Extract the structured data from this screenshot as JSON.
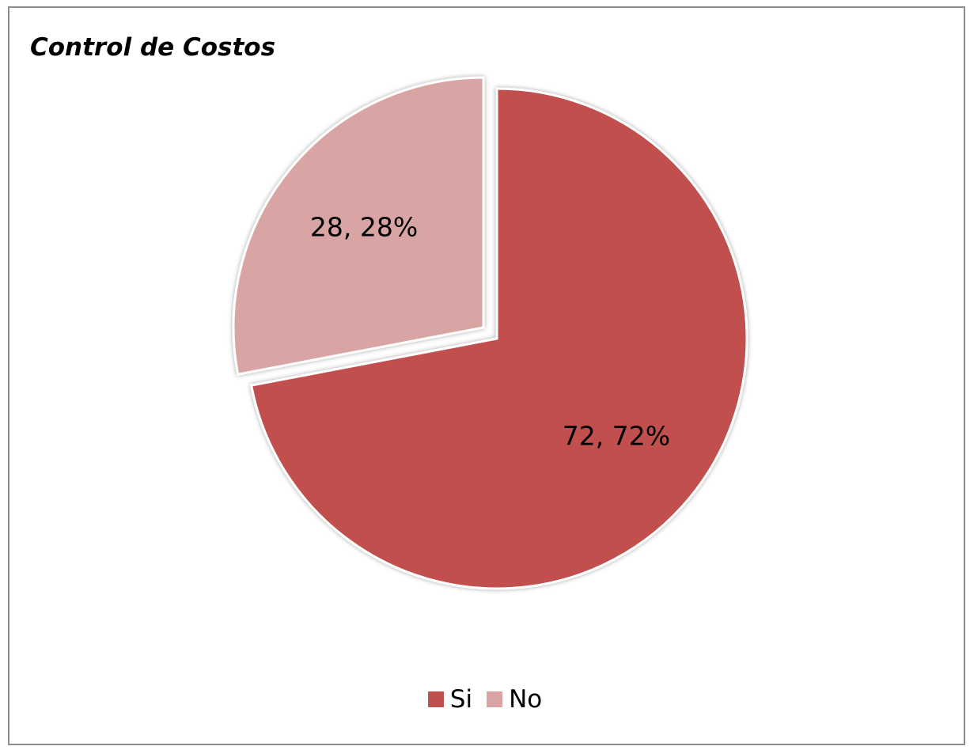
{
  "chart_data": {
    "type": "pie",
    "title": "Control de Costos",
    "slices": [
      {
        "name": "Si",
        "value": 72,
        "percent": 72,
        "label": "72, 72%",
        "color": "#c0504d",
        "exploded": false
      },
      {
        "name": "No",
        "value": 28,
        "percent": 28,
        "label": "28, 28%",
        "color": "#d9a5a4",
        "exploded": true
      }
    ],
    "legend": {
      "position": "bottom",
      "entries": [
        "Si",
        "No"
      ]
    }
  }
}
